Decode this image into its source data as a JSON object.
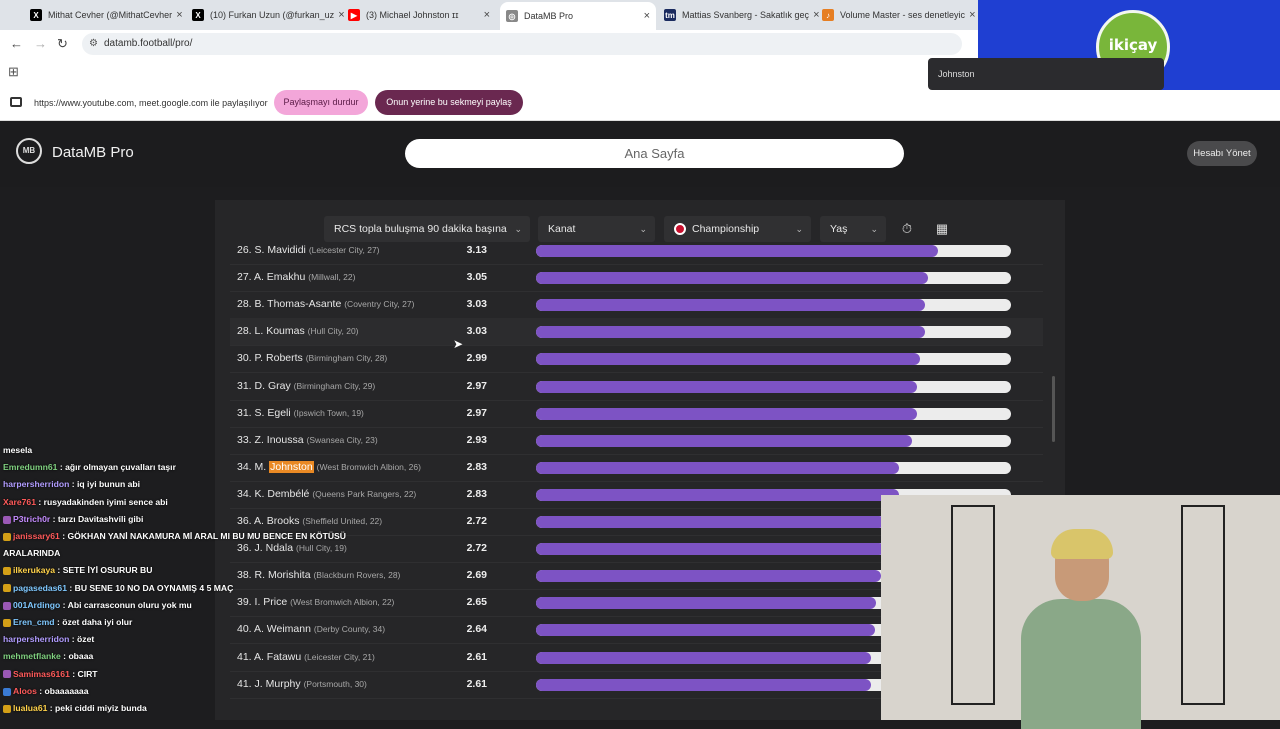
{
  "browser": {
    "tabs": [
      {
        "title": "Mithat Cevher (@MithatCevher",
        "favicon": "X",
        "favicon_color": "#000000"
      },
      {
        "title": "(10) Furkan Uzun (@furkan_uz",
        "favicon": "X",
        "favicon_color": "#000000"
      },
      {
        "title": "(3) Michael Johnston ɪɪ",
        "favicon": "▶",
        "favicon_color": "#ff0000"
      },
      {
        "title": "DataMB Pro",
        "favicon": "◎",
        "favicon_color": "#888888"
      },
      {
        "title": "Mattias Svanberg - Sakatlık geç",
        "favicon": "tm",
        "favicon_color": "#1a2a5e"
      },
      {
        "title": "Volume Master - ses denetleyic",
        "favicon": "♪",
        "favicon_color": "#e67e22"
      }
    ],
    "url": "datamb.football/pro/",
    "share_text": "https://www.youtube.com, meet.google.com ile paylaşılıyor",
    "stop_sharing": "Paylaşmayı durdur",
    "share_this_tab": "Onun yerine bu sekmeyi paylaş",
    "tooltip": "Johnston"
  },
  "overlay_logo": "ikiçay",
  "site": {
    "brand": "DataMB Pro",
    "brand_icon": "MB",
    "search_text": "Ana Sayfa",
    "account_button": "Hesabı Yönet"
  },
  "filters": {
    "metric": "RCS topla buluşma 90 dakika başına",
    "position": "Kanat",
    "league": "Championship",
    "age": "Yaş"
  },
  "max_value": 3.7,
  "rows": [
    {
      "rank": "26.",
      "player": "S. Mavididi",
      "team": "(Leicester City, 27)",
      "value": "3.13"
    },
    {
      "rank": "27.",
      "player": "A. Emakhu",
      "team": "(Millwall, 22)",
      "value": "3.05"
    },
    {
      "rank": "28.",
      "player": "B. Thomas-Asante",
      "team": "(Coventry City, 27)",
      "value": "3.03"
    },
    {
      "rank": "28.",
      "player": "L. Koumas",
      "team": "(Hull City, 20)",
      "value": "3.03"
    },
    {
      "rank": "30.",
      "player": "P. Roberts",
      "team": "(Birmingham City, 28)",
      "value": "2.99"
    },
    {
      "rank": "31.",
      "player": "D. Gray",
      "team": "(Birmingham City, 29)",
      "value": "2.97"
    },
    {
      "rank": "31.",
      "player": "S. Egeli",
      "team": "(Ipswich Town, 19)",
      "value": "2.97"
    },
    {
      "rank": "33.",
      "player": "Z. Inoussa",
      "team": "(Swansea City, 23)",
      "value": "2.93"
    },
    {
      "rank": "34.",
      "player": "M. Johnston",
      "team": "(West Bromwich Albion, 26)",
      "value": "2.83"
    },
    {
      "rank": "34.",
      "player": "K. Dembélé",
      "team": "(Queens Park Rangers, 22)",
      "value": "2.83"
    },
    {
      "rank": "36.",
      "player": "A. Brooks",
      "team": "(Sheffield United, 22)",
      "value": "2.72"
    },
    {
      "rank": "36.",
      "player": "J. Ndala",
      "team": "(Hull City, 19)",
      "value": "2.72"
    },
    {
      "rank": "38.",
      "player": "R. Morishita",
      "team": "(Blackburn Rovers, 28)",
      "value": "2.69"
    },
    {
      "rank": "39.",
      "player": "I. Price",
      "team": "(West Bromwich Albion, 22)",
      "value": "2.65"
    },
    {
      "rank": "40.",
      "player": "A. Weimann",
      "team": "(Derby County, 34)",
      "value": "2.64"
    },
    {
      "rank": "41.",
      "player": "A. Fatawu",
      "team": "(Leicester City, 21)",
      "value": "2.61"
    },
    {
      "rank": "41.",
      "player": "J. Murphy",
      "team": "(Portsmouth, 30)",
      "value": "2.61"
    }
  ],
  "highlight_text": "Johnston",
  "chat": [
    {
      "user": "",
      "msg": "mesela",
      "color": "#ffffff",
      "badge": ""
    },
    {
      "user": "Emredumn61",
      "msg": "ağır olmayan çuvalları taşır",
      "color": "#7fd07f",
      "badge": ""
    },
    {
      "user": "harpersherridon",
      "msg": "iq iyi bunun abi",
      "color": "#b19cff",
      "badge": ""
    },
    {
      "user": "Xare761",
      "msg": "rusyadakinden iyimi sence abi",
      "color": "#ff5a5a",
      "badge": ""
    },
    {
      "user": "P3trich0r",
      "msg": "tarzı Davitashvili gibi",
      "color": "#c58cff",
      "badge": "#9b59b6"
    },
    {
      "user": "janissary61",
      "msg": "GÖKHAN YANİ NAKAMURA Mİ ARAL MI BU MU BENCE EN KÖTÜSÜ",
      "color": "#ff5a5a",
      "badge": "#d4a017"
    },
    {
      "user": "",
      "msg": "ARALARINDA",
      "color": "#ffffff",
      "badge": ""
    },
    {
      "user": "ilkerukaya",
      "msg": "SETE İYİ OSURUR BU",
      "color": "#ffd24a",
      "badge": "#d4a017"
    },
    {
      "user": "pagasedas61",
      "msg": "BU SENE 10 NO DA OYNAMIŞ 4 5 MAÇ",
      "color": "#7fc8ff",
      "badge": "#d4a017"
    },
    {
      "user": "001Ardingo",
      "msg": "Abi carrasconun oluru yok mu",
      "color": "#7fc8ff",
      "badge": "#9b59b6"
    },
    {
      "user": "Eren_cmd",
      "msg": "özet daha iyi olur",
      "color": "#7fc8ff",
      "badge": "#d4a017"
    },
    {
      "user": "harpersherridon",
      "msg": "özet",
      "color": "#b19cff",
      "badge": ""
    },
    {
      "user": "mehmetflanke",
      "msg": "obaaa",
      "color": "#7fd07f",
      "badge": ""
    },
    {
      "user": "Samimas6161",
      "msg": "CIRT",
      "color": "#ff5a5a",
      "badge": "#9b59b6"
    },
    {
      "user": "Aloos",
      "msg": "obaaaaaaa",
      "color": "#ff5a5a",
      "badge": "#3a7bd5"
    },
    {
      "user": "lualua61",
      "msg": "peki ciddi miyiz bunda",
      "color": "#ffd24a",
      "badge": "#d4a017"
    }
  ],
  "colors": {
    "bar_fill": "#7d53c4",
    "bar_track": "#ececec",
    "highlight": "#e98924",
    "panel": "#262628",
    "overlay_blue": "#1f3fd2"
  }
}
